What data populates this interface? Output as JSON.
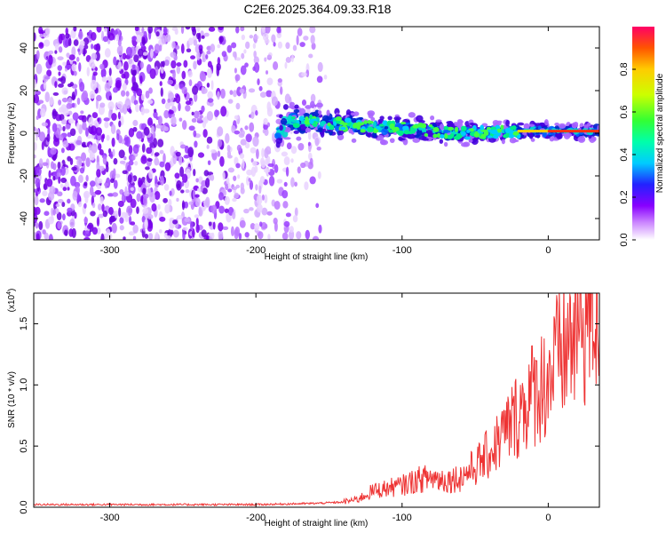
{
  "title": "C2E6.2025.364.09.33.R18",
  "colors": {
    "accent": "#ee3333",
    "panel_line": "#000000"
  },
  "chart_data": [
    {
      "type": "heatmap",
      "title": "C2E6.2025.364.09.33.R18",
      "xlabel": "Height of straight line (km)",
      "ylabel": "Frequency (Hz)",
      "xlim": [
        -352,
        35
      ],
      "ylim": [
        -50,
        50
      ],
      "xticks": [
        -300,
        -200,
        -100,
        0
      ],
      "xtick_labels": [
        "-300",
        "-200",
        "-100",
        "0"
      ],
      "yticks": [
        -40,
        -20,
        0,
        20,
        40
      ],
      "ytick_labels": [
        "-40",
        "-20",
        "0",
        "20",
        "40"
      ],
      "description_of_data": "diffuse low-amplitude noise below ~-150 km; signal band near 0 Hz strengthening toward 0 km",
      "band_center_hz": [
        {
          "x": -180,
          "y": 6
        },
        {
          "x": -150,
          "y": 5
        },
        {
          "x": -120,
          "y": 3
        },
        {
          "x": -90,
          "y": 2
        },
        {
          "x": -60,
          "y": 0
        },
        {
          "x": -30,
          "y": 1
        },
        {
          "x": 0,
          "y": 1
        },
        {
          "x": 35,
          "y": 1
        }
      ],
      "colorbar": {
        "label": "Normalized spectral amplitude",
        "range": [
          0.0,
          1.0
        ],
        "ticks": [
          0.0,
          0.2,
          0.4,
          0.6,
          0.8
        ],
        "tick_labels": [
          "0.0",
          "0.2",
          "0.4",
          "0.6",
          "0.8"
        ]
      }
    },
    {
      "type": "line",
      "xlabel": "Height of straight line (km)",
      "ylabel": "SNR (10 * v/v)",
      "y_multiplier_label": "(x10",
      "y_multiplier_exp": "4",
      "xlim": [
        -352,
        35
      ],
      "ylim": [
        0,
        1.75
      ],
      "xticks": [
        -300,
        -200,
        -100,
        0
      ],
      "xtick_labels": [
        "-300",
        "-200",
        "-100",
        "0"
      ],
      "yticks": [
        0.0,
        0.5,
        1.0,
        1.5
      ],
      "ytick_labels": [
        "0.0",
        "0.5",
        "1.0",
        "1.5"
      ],
      "series": [
        {
          "name": "SNR",
          "color": "#ee3333",
          "x": [
            -352,
            -300,
            -250,
            -200,
            -160,
            -140,
            -130,
            -120,
            -110,
            -100,
            -90,
            -80,
            -70,
            -60,
            -50,
            -40,
            -30,
            -20,
            -10,
            0,
            10,
            20,
            30,
            35
          ],
          "y": [
            0.02,
            0.02,
            0.02,
            0.02,
            0.03,
            0.04,
            0.06,
            0.12,
            0.14,
            0.16,
            0.2,
            0.22,
            0.2,
            0.22,
            0.3,
            0.4,
            0.55,
            0.7,
            0.85,
            0.95,
            1.15,
            1.3,
            1.45,
            1.45
          ]
        }
      ]
    }
  ]
}
